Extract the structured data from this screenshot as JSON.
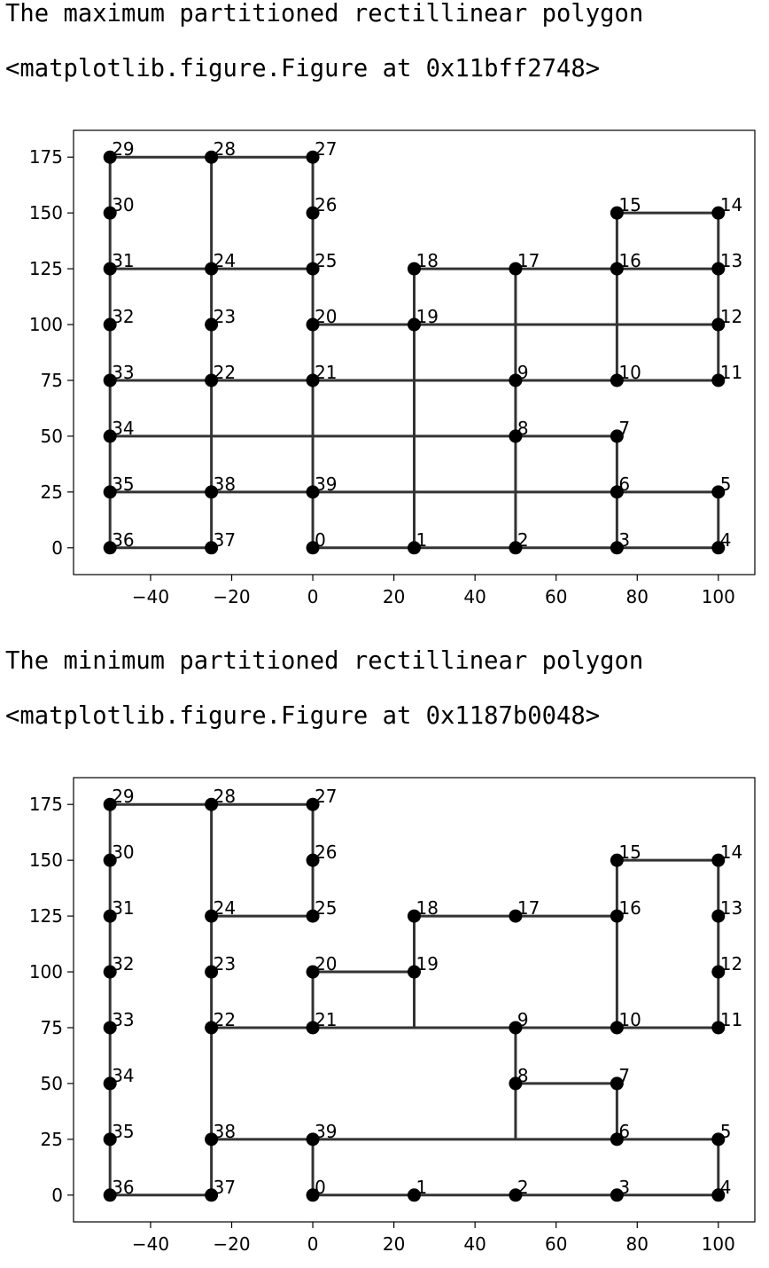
{
  "outputs": [
    {
      "caption": "The maximum partitioned rectillinear polygon",
      "repr": "<matplotlib.figure.Figure at 0x11bff2748>"
    },
    {
      "caption": "The minimum partitioned rectillinear polygon",
      "repr": "<matplotlib.figure.Figure at 0x1187b0048>"
    }
  ],
  "chart_data": [
    {
      "type": "line",
      "title": "",
      "xlabel": "",
      "ylabel": "",
      "xlim": [
        -59,
        109
      ],
      "ylim": [
        -12,
        187
      ],
      "xticks": [
        -40,
        -20,
        0,
        20,
        40,
        60,
        80,
        100
      ],
      "yticks": [
        0,
        25,
        50,
        75,
        100,
        125,
        150,
        175
      ],
      "grid": false,
      "line_color": "#333333",
      "marker_color": "#000000",
      "points": [
        {
          "label": "0",
          "x": 0,
          "y": 0
        },
        {
          "label": "1",
          "x": 25,
          "y": 0
        },
        {
          "label": "2",
          "x": 50,
          "y": 0
        },
        {
          "label": "3",
          "x": 75,
          "y": 0
        },
        {
          "label": "4",
          "x": 100,
          "y": 0
        },
        {
          "label": "5",
          "x": 100,
          "y": 25
        },
        {
          "label": "6",
          "x": 75,
          "y": 25
        },
        {
          "label": "7",
          "x": 75,
          "y": 50
        },
        {
          "label": "8",
          "x": 50,
          "y": 50
        },
        {
          "label": "9",
          "x": 50,
          "y": 75
        },
        {
          "label": "10",
          "x": 75,
          "y": 75
        },
        {
          "label": "11",
          "x": 100,
          "y": 75
        },
        {
          "label": "12",
          "x": 100,
          "y": 100
        },
        {
          "label": "13",
          "x": 100,
          "y": 125
        },
        {
          "label": "14",
          "x": 100,
          "y": 150
        },
        {
          "label": "15",
          "x": 75,
          "y": 150
        },
        {
          "label": "16",
          "x": 75,
          "y": 125
        },
        {
          "label": "17",
          "x": 50,
          "y": 125
        },
        {
          "label": "18",
          "x": 25,
          "y": 125
        },
        {
          "label": "19",
          "x": 25,
          "y": 100
        },
        {
          "label": "20",
          "x": 0,
          "y": 100
        },
        {
          "label": "21",
          "x": 0,
          "y": 75
        },
        {
          "label": "22",
          "x": -25,
          "y": 75
        },
        {
          "label": "23",
          "x": -25,
          "y": 100
        },
        {
          "label": "24",
          "x": -25,
          "y": 125
        },
        {
          "label": "25",
          "x": 0,
          "y": 125
        },
        {
          "label": "26",
          "x": 0,
          "y": 150
        },
        {
          "label": "27",
          "x": 0,
          "y": 175
        },
        {
          "label": "28",
          "x": -25,
          "y": 175
        },
        {
          "label": "29",
          "x": -50,
          "y": 175
        },
        {
          "label": "30",
          "x": -50,
          "y": 150
        },
        {
          "label": "31",
          "x": -50,
          "y": 125
        },
        {
          "label": "32",
          "x": -50,
          "y": 100
        },
        {
          "label": "33",
          "x": -50,
          "y": 75
        },
        {
          "label": "34",
          "x": -50,
          "y": 50
        },
        {
          "label": "35",
          "x": -50,
          "y": 25
        },
        {
          "label": "36",
          "x": -50,
          "y": 0
        },
        {
          "label": "37",
          "x": -25,
          "y": 0
        },
        {
          "label": "38",
          "x": -25,
          "y": 25
        },
        {
          "label": "39",
          "x": 0,
          "y": 25
        }
      ],
      "segments": [
        [
          [
            -50,
            0
          ],
          [
            -25,
            0
          ]
        ],
        [
          [
            0,
            0
          ],
          [
            100,
            0
          ]
        ],
        [
          [
            -50,
            25
          ],
          [
            100,
            25
          ]
        ],
        [
          [
            -50,
            50
          ],
          [
            75,
            50
          ]
        ],
        [
          [
            -50,
            75
          ],
          [
            100,
            75
          ]
        ],
        [
          [
            0,
            100
          ],
          [
            100,
            100
          ]
        ],
        [
          [
            -50,
            125
          ],
          [
            0,
            125
          ]
        ],
        [
          [
            25,
            125
          ],
          [
            100,
            125
          ]
        ],
        [
          [
            75,
            150
          ],
          [
            100,
            150
          ]
        ],
        [
          [
            -50,
            175
          ],
          [
            0,
            175
          ]
        ],
        [
          [
            -50,
            0
          ],
          [
            -50,
            175
          ]
        ],
        [
          [
            -25,
            0
          ],
          [
            -25,
            175
          ]
        ],
        [
          [
            0,
            0
          ],
          [
            0,
            125
          ]
        ],
        [
          [
            0,
            125
          ],
          [
            0,
            175
          ]
        ],
        [
          [
            25,
            0
          ],
          [
            25,
            125
          ]
        ],
        [
          [
            50,
            0
          ],
          [
            50,
            125
          ]
        ],
        [
          [
            75,
            0
          ],
          [
            75,
            50
          ]
        ],
        [
          [
            75,
            75
          ],
          [
            75,
            150
          ]
        ],
        [
          [
            100,
            0
          ],
          [
            100,
            25
          ]
        ],
        [
          [
            100,
            75
          ],
          [
            100,
            150
          ]
        ]
      ]
    },
    {
      "type": "line",
      "title": "",
      "xlabel": "",
      "ylabel": "",
      "xlim": [
        -59,
        109
      ],
      "ylim": [
        -12,
        187
      ],
      "xticks": [
        -40,
        -20,
        0,
        20,
        40,
        60,
        80,
        100
      ],
      "yticks": [
        0,
        25,
        50,
        75,
        100,
        125,
        150,
        175
      ],
      "grid": false,
      "line_color": "#333333",
      "marker_color": "#000000",
      "points": [
        {
          "label": "0",
          "x": 0,
          "y": 0
        },
        {
          "label": "1",
          "x": 25,
          "y": 0
        },
        {
          "label": "2",
          "x": 50,
          "y": 0
        },
        {
          "label": "3",
          "x": 75,
          "y": 0
        },
        {
          "label": "4",
          "x": 100,
          "y": 0
        },
        {
          "label": "5",
          "x": 100,
          "y": 25
        },
        {
          "label": "6",
          "x": 75,
          "y": 25
        },
        {
          "label": "7",
          "x": 75,
          "y": 50
        },
        {
          "label": "8",
          "x": 50,
          "y": 50
        },
        {
          "label": "9",
          "x": 50,
          "y": 75
        },
        {
          "label": "10",
          "x": 75,
          "y": 75
        },
        {
          "label": "11",
          "x": 100,
          "y": 75
        },
        {
          "label": "12",
          "x": 100,
          "y": 100
        },
        {
          "label": "13",
          "x": 100,
          "y": 125
        },
        {
          "label": "14",
          "x": 100,
          "y": 150
        },
        {
          "label": "15",
          "x": 75,
          "y": 150
        },
        {
          "label": "16",
          "x": 75,
          "y": 125
        },
        {
          "label": "17",
          "x": 50,
          "y": 125
        },
        {
          "label": "18",
          "x": 25,
          "y": 125
        },
        {
          "label": "19",
          "x": 25,
          "y": 100
        },
        {
          "label": "20",
          "x": 0,
          "y": 100
        },
        {
          "label": "21",
          "x": 0,
          "y": 75
        },
        {
          "label": "22",
          "x": -25,
          "y": 75
        },
        {
          "label": "23",
          "x": -25,
          "y": 100
        },
        {
          "label": "24",
          "x": -25,
          "y": 125
        },
        {
          "label": "25",
          "x": 0,
          "y": 125
        },
        {
          "label": "26",
          "x": 0,
          "y": 150
        },
        {
          "label": "27",
          "x": 0,
          "y": 175
        },
        {
          "label": "28",
          "x": -25,
          "y": 175
        },
        {
          "label": "29",
          "x": -50,
          "y": 175
        },
        {
          "label": "30",
          "x": -50,
          "y": 150
        },
        {
          "label": "31",
          "x": -50,
          "y": 125
        },
        {
          "label": "32",
          "x": -50,
          "y": 100
        },
        {
          "label": "33",
          "x": -50,
          "y": 75
        },
        {
          "label": "34",
          "x": -50,
          "y": 50
        },
        {
          "label": "35",
          "x": -50,
          "y": 25
        },
        {
          "label": "36",
          "x": -50,
          "y": 0
        },
        {
          "label": "37",
          "x": -25,
          "y": 0
        },
        {
          "label": "38",
          "x": -25,
          "y": 25
        },
        {
          "label": "39",
          "x": 0,
          "y": 25
        }
      ],
      "segments": [
        [
          [
            0,
            0
          ],
          [
            100,
            0
          ]
        ],
        [
          [
            100,
            0
          ],
          [
            100,
            25
          ]
        ],
        [
          [
            100,
            25
          ],
          [
            75,
            25
          ]
        ],
        [
          [
            75,
            25
          ],
          [
            75,
            50
          ]
        ],
        [
          [
            75,
            50
          ],
          [
            50,
            50
          ]
        ],
        [
          [
            50,
            50
          ],
          [
            50,
            75
          ]
        ],
        [
          [
            50,
            75
          ],
          [
            100,
            75
          ]
        ],
        [
          [
            100,
            75
          ],
          [
            100,
            150
          ]
        ],
        [
          [
            100,
            150
          ],
          [
            75,
            150
          ]
        ],
        [
          [
            75,
            150
          ],
          [
            75,
            125
          ]
        ],
        [
          [
            75,
            125
          ],
          [
            25,
            125
          ]
        ],
        [
          [
            25,
            125
          ],
          [
            25,
            100
          ]
        ],
        [
          [
            25,
            100
          ],
          [
            0,
            100
          ]
        ],
        [
          [
            0,
            100
          ],
          [
            0,
            75
          ]
        ],
        [
          [
            0,
            75
          ],
          [
            -25,
            75
          ]
        ],
        [
          [
            -25,
            75
          ],
          [
            -25,
            125
          ]
        ],
        [
          [
            -25,
            125
          ],
          [
            0,
            125
          ]
        ],
        [
          [
            0,
            125
          ],
          [
            0,
            175
          ]
        ],
        [
          [
            0,
            175
          ],
          [
            -50,
            175
          ]
        ],
        [
          [
            -50,
            175
          ],
          [
            -50,
            0
          ]
        ],
        [
          [
            -50,
            0
          ],
          [
            -25,
            0
          ]
        ],
        [
          [
            -25,
            0
          ],
          [
            -25,
            25
          ]
        ],
        [
          [
            -25,
            25
          ],
          [
            0,
            25
          ]
        ],
        [
          [
            0,
            25
          ],
          [
            0,
            0
          ]
        ],
        [
          [
            -25,
            175
          ],
          [
            -25,
            125
          ]
        ],
        [
          [
            -25,
            75
          ],
          [
            -25,
            25
          ]
        ],
        [
          [
            0,
            75
          ],
          [
            50,
            75
          ]
        ],
        [
          [
            25,
            100
          ],
          [
            25,
            75
          ]
        ],
        [
          [
            75,
            125
          ],
          [
            75,
            75
          ]
        ],
        [
          [
            50,
            50
          ],
          [
            50,
            25
          ]
        ],
        [
          [
            0,
            25
          ],
          [
            75,
            25
          ]
        ]
      ]
    }
  ]
}
